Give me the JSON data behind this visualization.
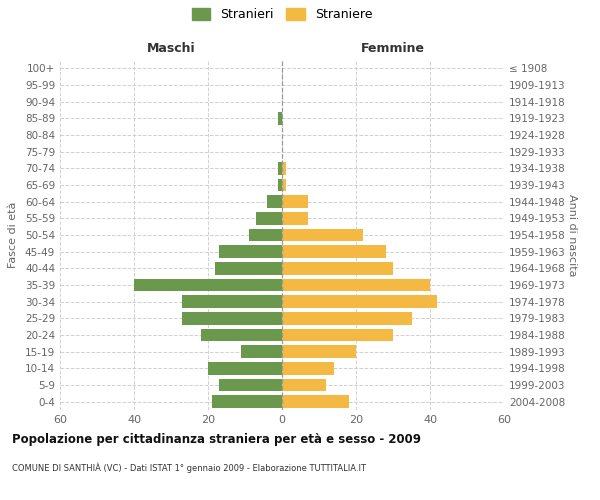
{
  "age_groups": [
    "0-4",
    "5-9",
    "10-14",
    "15-19",
    "20-24",
    "25-29",
    "30-34",
    "35-39",
    "40-44",
    "45-49",
    "50-54",
    "55-59",
    "60-64",
    "65-69",
    "70-74",
    "75-79",
    "80-84",
    "85-89",
    "90-94",
    "95-99",
    "100+"
  ],
  "birth_years": [
    "2004-2008",
    "1999-2003",
    "1994-1998",
    "1989-1993",
    "1984-1988",
    "1979-1983",
    "1974-1978",
    "1969-1973",
    "1964-1968",
    "1959-1963",
    "1954-1958",
    "1949-1953",
    "1944-1948",
    "1939-1943",
    "1934-1938",
    "1929-1933",
    "1924-1928",
    "1919-1923",
    "1914-1918",
    "1909-1913",
    "≤ 1908"
  ],
  "maschi": [
    19,
    17,
    20,
    11,
    22,
    27,
    27,
    40,
    18,
    17,
    9,
    7,
    4,
    1,
    1,
    0,
    0,
    1,
    0,
    0,
    0
  ],
  "femmine": [
    18,
    12,
    14,
    20,
    30,
    35,
    42,
    40,
    30,
    28,
    22,
    7,
    7,
    1,
    1,
    0,
    0,
    0,
    0,
    0,
    0
  ],
  "maschi_color": "#6a994e",
  "femmine_color": "#f4b942",
  "background_color": "#ffffff",
  "grid_color": "#cccccc",
  "title": "Popolazione per cittadinanza straniera per età e sesso - 2009",
  "subtitle": "COMUNE DI SANTHIÀ (VC) - Dati ISTAT 1° gennaio 2009 - Elaborazione TUTTITALIA.IT",
  "xlabel_left": "Maschi",
  "xlabel_right": "Femmine",
  "ylabel_left": "Fasce di età",
  "ylabel_right": "Anni di nascita",
  "legend_maschi": "Stranieri",
  "legend_femmine": "Straniere",
  "xlim": 60
}
